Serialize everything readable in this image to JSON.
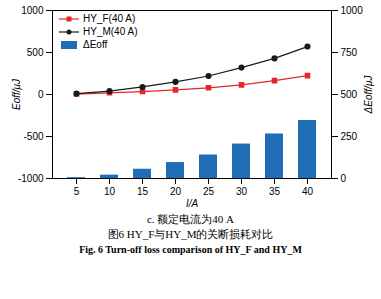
{
  "chart_data": {
    "type": "combo",
    "categories": [
      "5",
      "10",
      "15",
      "20",
      "25",
      "30",
      "35",
      "40"
    ],
    "xlabel": "I/A",
    "ylabel": "Eoff/μJ",
    "y2label": "ΔEoff/μJ",
    "ylim": [
      -1000,
      1000
    ],
    "yticks": [
      -1000,
      -500,
      0,
      500,
      1000
    ],
    "y2lim": [
      0,
      1000
    ],
    "y2ticks": [
      0,
      250,
      500,
      750,
      1000
    ],
    "legend": "upper left",
    "series": [
      {
        "name": "HY_F(40 A)",
        "type": "line",
        "color": "#e3262b",
        "marker": "square",
        "values": [
          5,
          20,
          35,
          55,
          80,
          115,
          165,
          225
        ]
      },
      {
        "name": "HY_M(40 A)",
        "type": "line",
        "color": "#1a1a1a",
        "marker": "circle",
        "values": [
          10,
          40,
          90,
          150,
          220,
          320,
          430,
          570
        ]
      },
      {
        "name": "ΔEoff",
        "type": "bar",
        "axis": "y2",
        "color": "#1f6db5",
        "values": [
          5,
          20,
          55,
          95,
          140,
          205,
          265,
          345
        ]
      }
    ],
    "annotations": [
      "c. 额定电流为40 A",
      "图6   HY_F与HY_M的关断损耗对比",
      "Fig. 6   Turn-off loss comparison of HY_F and HY_M"
    ]
  }
}
